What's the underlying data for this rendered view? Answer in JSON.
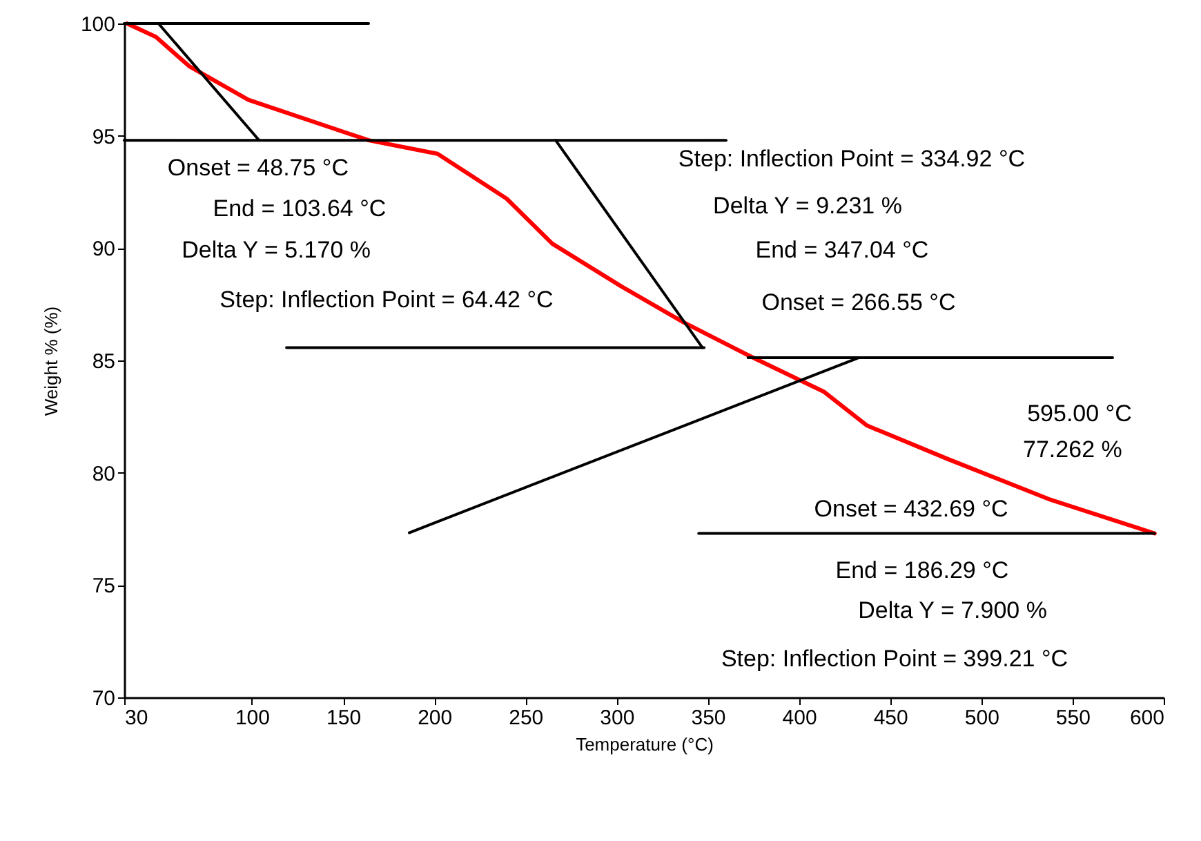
{
  "chart_data": {
    "type": "line",
    "xlabel": "Temperature (°C)",
    "ylabel": "Weight % (%)",
    "xlim": [
      30,
      600
    ],
    "ylim": [
      70,
      100
    ],
    "xticks": [
      30,
      100,
      150,
      200,
      250,
      300,
      350,
      400,
      450,
      500,
      550,
      600
    ],
    "yticks": [
      70,
      75,
      80,
      85,
      90,
      95,
      100
    ],
    "series": [
      {
        "color": "#ff0000",
        "x": [
          31.5,
          47.4,
          65.6,
          98.1,
          164,
          201.8,
          239.7,
          264.7,
          302.5,
          336.6,
          372.9,
          413.8,
          437.3,
          481.9,
          537.9,
          595
        ],
        "values": [
          100,
          99.4,
          98.1,
          96.6,
          94.8,
          94.2,
          92.2,
          90.2,
          88.3,
          86.7,
          85.2,
          83.6,
          82.1,
          80.6,
          78.8,
          77.3
        ]
      },
      {
        "color": "#000000",
        "x": [
          30,
          164
        ],
        "values": [
          100,
          100
        ]
      },
      {
        "color": "#000000",
        "x": [
          48.75,
          103.64
        ],
        "values": [
          100,
          94.83
        ]
      },
      {
        "color": "#000000",
        "x": [
          30,
          360
        ],
        "values": [
          94.8,
          94.8
        ]
      },
      {
        "color": "#000000",
        "x": [
          266.55,
          347.04
        ],
        "values": [
          94.8,
          85.57
        ]
      },
      {
        "color": "#000000",
        "x": [
          119,
          348
        ],
        "values": [
          85.57,
          85.57
        ]
      },
      {
        "color": "#000000",
        "x": [
          372,
          572
        ],
        "values": [
          85.12,
          85.12
        ]
      },
      {
        "color": "#000000",
        "x": [
          186.29,
          432.69
        ],
        "values": [
          77.33,
          85.12
        ]
      },
      {
        "color": "#000000",
        "x": [
          345,
          595
        ],
        "values": [
          77.3,
          77.3
        ]
      }
    ],
    "annotations": [
      "Onset = 48.75 °C",
      "End = 103.64 °C",
      "Delta Y = 5.170 %",
      "Step: Inflection Point = 64.42 °C",
      "Step: Inflection Point = 334.92 °C",
      "Delta Y = 9.231 %",
      "End = 347.04 °C",
      "Onset = 266.55 °C",
      "595.00 °C",
      "77.262 %",
      "Onset = 432.69 °C",
      "End = 186.29 °C",
      "Delta Y = 7.900 %",
      "Step: Inflection Point = 399.21 °C"
    ]
  }
}
